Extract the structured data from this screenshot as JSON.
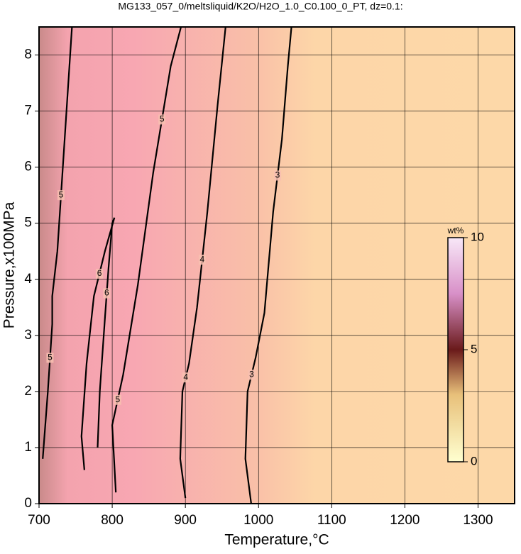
{
  "chart_data": {
    "type": "contour",
    "title": "MG133_057_0/meltsliquid/K2O/H2O_1.0_C0.100_0_PT, dz=0.1:",
    "xlabel": "Temperature,°C",
    "ylabel": "Pressure,x100MPa",
    "xlim": [
      700,
      1350
    ],
    "ylim": [
      0,
      8.5
    ],
    "xticks": [
      700,
      800,
      900,
      1000,
      1100,
      1200,
      1300
    ],
    "yticks": [
      0,
      1,
      2,
      3,
      4,
      5,
      6,
      7,
      8
    ],
    "grid": true,
    "contours": [
      {
        "level": 3,
        "x": [
          990,
          982,
          985,
          996,
          1008,
          1020,
          1032,
          1040,
          1045
        ],
        "y": [
          0,
          0.8,
          2.0,
          2.6,
          3.4,
          5.2,
          6.5,
          7.8,
          8.5
        ]
      },
      {
        "level": 4,
        "x": [
          900,
          893,
          896,
          905,
          916,
          930,
          944,
          955
        ],
        "y": [
          0.1,
          0.8,
          2.0,
          2.5,
          3.5,
          5.2,
          7.1,
          8.5
        ]
      },
      {
        "level": 5,
        "x": [
          805,
          800,
          815,
          835,
          856,
          880,
          894
        ],
        "y": [
          0.2,
          1.4,
          2.3,
          3.9,
          5.9,
          7.8,
          8.5
        ]
      },
      {
        "level": 6,
        "x": [
          762,
          758,
          765,
          775,
          790,
          803,
          800,
          795,
          790,
          783,
          780
        ],
        "y": [
          0.6,
          1.2,
          2.5,
          3.7,
          4.5,
          5.1,
          5.0,
          4.2,
          3.3,
          2.0,
          1.0
        ]
      },
      {
        "level": 5,
        "x": [
          705,
          712,
          718,
          718,
          725,
          735,
          745
        ],
        "y": [
          0.8,
          2.0,
          3.2,
          3.7,
          4.5,
          6.5,
          8.5
        ]
      }
    ],
    "colorbar": {
      "label": "wt%",
      "lim": [
        0,
        10
      ],
      "ticks": [
        0,
        5,
        10
      ]
    }
  }
}
